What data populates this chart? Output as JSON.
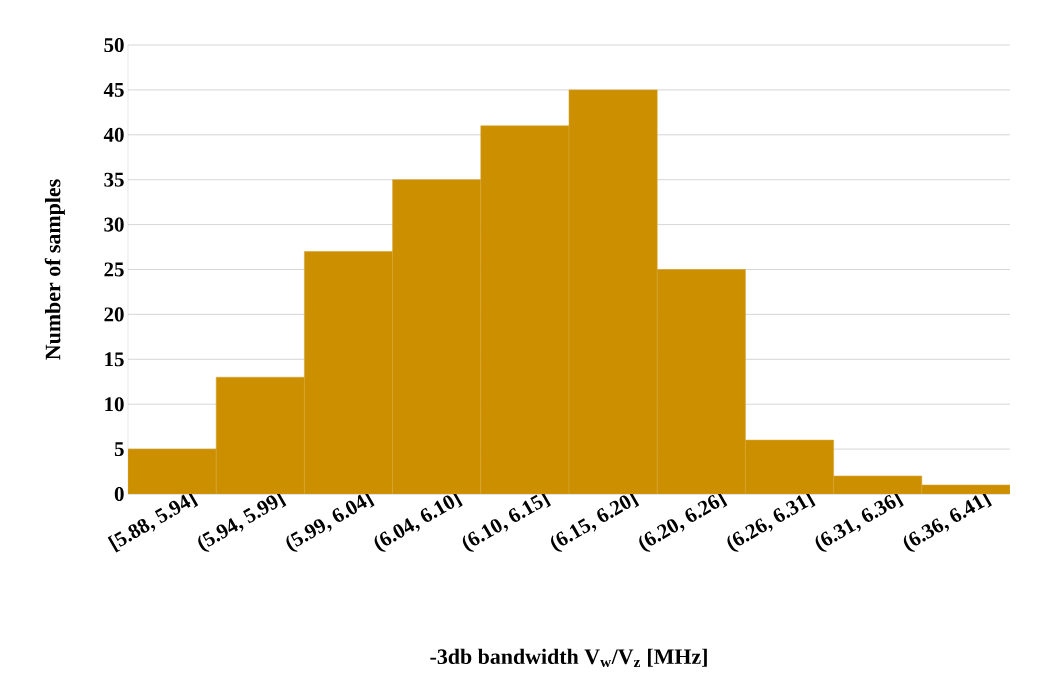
{
  "chart_data": {
    "type": "bar",
    "xlabel": "-3db bandwidth V$_{w}$/V$_{z}$ [MHz]",
    "ylabel": "Number of samples",
    "categories": [
      "[5.88, 5.94]",
      "(5.94, 5.99]",
      "(5.99, 6.04]",
      "(6.04, 6.10]",
      "(6.10, 6.15]",
      "(6.15, 6.20]",
      "(6.20, 6.26]",
      "(6.26, 6.31]",
      "(6.31, 6.36]",
      "(6.36, 6.41]"
    ],
    "values": [
      5,
      13,
      27,
      35,
      41,
      45,
      25,
      6,
      2,
      1
    ],
    "color": "#cc8f00",
    "ylim": [
      0,
      50
    ],
    "yticks": [
      0,
      5,
      10,
      15,
      20,
      25,
      30,
      35,
      40,
      45,
      50
    ],
    "grid": "y"
  }
}
